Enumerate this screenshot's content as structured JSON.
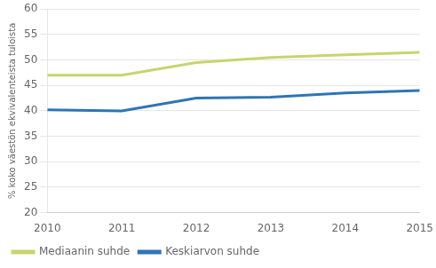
{
  "chart_data": {
    "type": "line",
    "x": [
      2010,
      2011,
      2012,
      2013,
      2014,
      2015
    ],
    "series": [
      {
        "name": "Mediaanin suhde",
        "color": "#c8d46e",
        "values": [
          47.0,
          47.0,
          49.5,
          50.5,
          51.0,
          51.5
        ]
      },
      {
        "name": "Keskiarvon suhde",
        "color": "#2e75b6",
        "values": [
          40.2,
          40.0,
          42.5,
          42.7,
          43.5,
          44.0
        ]
      }
    ],
    "ylabel": "% koko väestön ekvivalenteista tuloista",
    "xlim": [
      2010,
      2015
    ],
    "xticks": [
      2010,
      2011,
      2012,
      2013,
      2014,
      2015
    ],
    "ylim": [
      20,
      60
    ],
    "yticks": [
      20,
      25,
      30,
      35,
      40,
      45,
      50,
      55,
      60
    ],
    "grid": "y",
    "legend": "lower left"
  }
}
